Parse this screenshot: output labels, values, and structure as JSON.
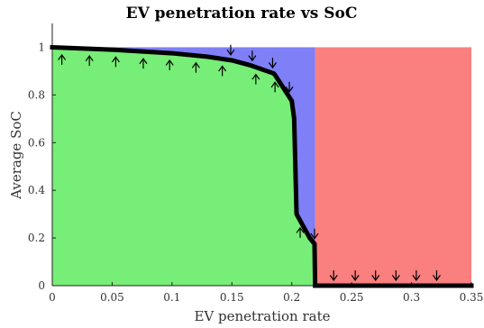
{
  "chart_data": {
    "type": "area",
    "title": "EV penetration rate vs SoC",
    "xlabel": "EV penetration rate",
    "ylabel": "Average SoC",
    "xlim": [
      0,
      0.35
    ],
    "ylim": [
      0,
      1.1
    ],
    "xticks": [
      "0",
      "0.05",
      "0.1",
      "0.15",
      "0.2",
      "0.25",
      "0.3",
      "0.35"
    ],
    "yticks": [
      "0",
      "0.2",
      "0.4",
      "0.6",
      "0.8",
      "1"
    ],
    "grid": false,
    "series": [
      {
        "x": [
          0,
          0.05,
          0.1,
          0.13,
          0.15,
          0.165,
          0.185,
          0.1865,
          0.2,
          0.202,
          0.204,
          0.215,
          0.219,
          0.2195,
          0.35
        ],
        "y": [
          1.0,
          0.99,
          0.975,
          0.96,
          0.945,
          0.925,
          0.89,
          0.88,
          0.775,
          0.7,
          0.3,
          0.2,
          0.175,
          0.0,
          0.0
        ]
      }
    ],
    "regions": [
      {
        "color": "#77ee77",
        "x_range": [
          0,
          0.2195
        ],
        "below_curve": true
      },
      {
        "color": "#7f7ff7",
        "x_range": [
          0,
          0.2195
        ],
        "y_top": 1.0,
        "above_curve": true
      },
      {
        "color": "#fa7f7f",
        "x_range": [
          0.2195,
          0.35
        ],
        "y_range": [
          0,
          1.0
        ]
      }
    ],
    "arrows_up_x": [
      0.008,
      0.031,
      0.053,
      0.076,
      0.098,
      0.12,
      0.142,
      0.17,
      0.186,
      0.207
    ],
    "arrows_down_x": [
      0.149,
      0.167,
      0.184,
      0.198,
      0.219,
      0.235,
      0.253,
      0.27,
      0.287,
      0.304,
      0.321
    ]
  }
}
